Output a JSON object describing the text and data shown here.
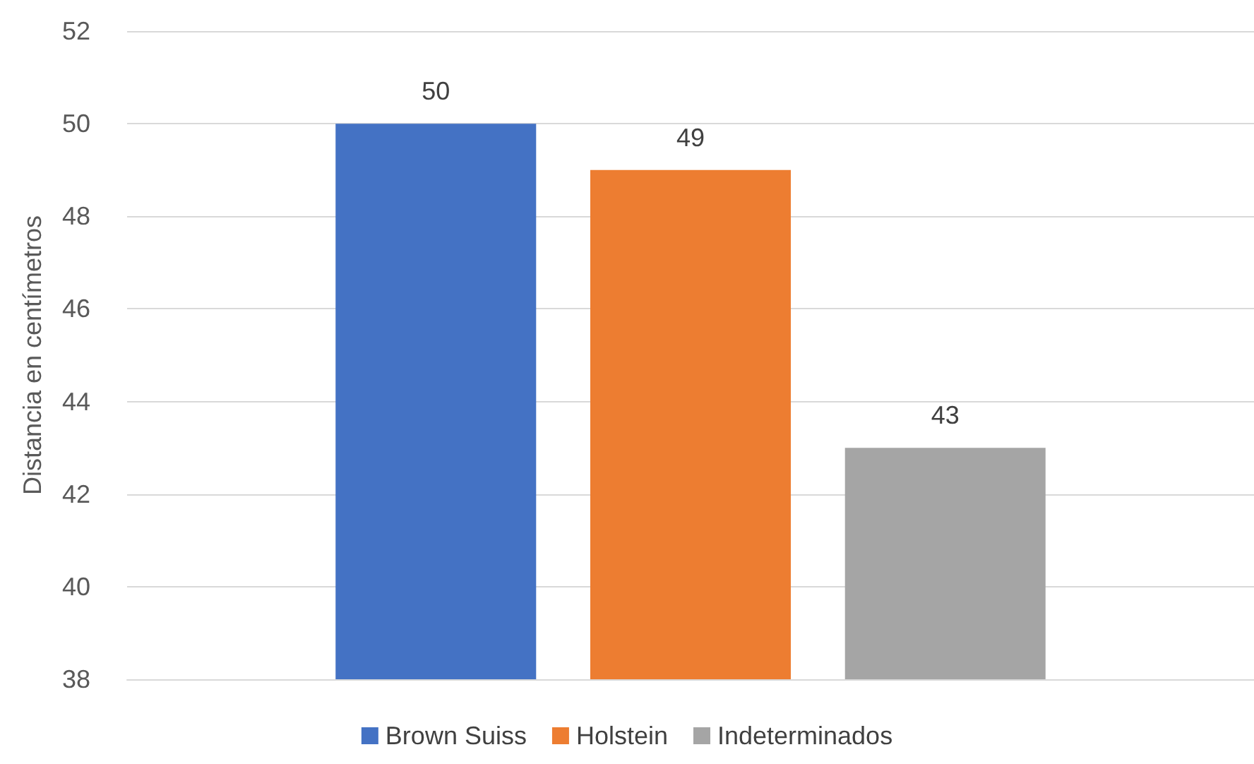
{
  "chart_data": {
    "type": "bar",
    "ylabel": "Distancia en centímetros",
    "categories": [
      null
    ],
    "series": [
      {
        "name": "Brown Suiss",
        "color": "#4472c4",
        "values": [
          50
        ]
      },
      {
        "name": "Holstein",
        "color": "#ed7d31",
        "values": [
          49
        ]
      },
      {
        "name": "Indeterminados",
        "color": "#a5a5a5",
        "values": [
          43
        ]
      }
    ],
    "ylim": [
      38,
      52
    ],
    "yticks": [
      38,
      40,
      42,
      44,
      46,
      48,
      50,
      52
    ],
    "grid": "y",
    "legend": "bottom",
    "data_labels": true
  }
}
